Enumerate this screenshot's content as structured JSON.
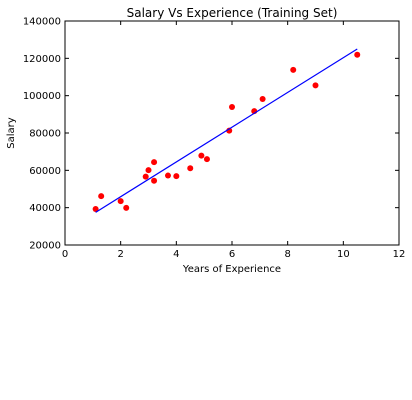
{
  "chart_data": {
    "type": "scatter",
    "title": "Salary Vs Experience (Training Set)",
    "xlabel": "Years of Experience",
    "ylabel": "Salary",
    "xlim": [
      0,
      12
    ],
    "ylim": [
      20000,
      140000
    ],
    "xticks": [
      0,
      2,
      4,
      6,
      8,
      10,
      12
    ],
    "yticks": [
      20000,
      40000,
      60000,
      80000,
      100000,
      120000,
      140000
    ],
    "grid": false,
    "series": [
      {
        "type": "scatter",
        "color": "#ff0000",
        "points": [
          [
            1.1,
            39300
          ],
          [
            1.3,
            46200
          ],
          [
            2.0,
            43500
          ],
          [
            2.2,
            39900
          ],
          [
            2.9,
            56600
          ],
          [
            3.0,
            60100
          ],
          [
            3.2,
            54400
          ],
          [
            3.2,
            64400
          ],
          [
            3.7,
            57200
          ],
          [
            4.0,
            56900
          ],
          [
            4.5,
            61100
          ],
          [
            4.9,
            67900
          ],
          [
            5.1,
            66000
          ],
          [
            5.9,
            81300
          ],
          [
            6.0,
            93900
          ],
          [
            6.8,
            91700
          ],
          [
            7.1,
            98200
          ],
          [
            8.2,
            113800
          ],
          [
            9.0,
            105500
          ],
          [
            10.5,
            121900
          ]
        ]
      },
      {
        "type": "line",
        "color": "#0000ff",
        "points": [
          [
            1.1,
            37500
          ],
          [
            10.5,
            125000
          ]
        ]
      }
    ]
  }
}
